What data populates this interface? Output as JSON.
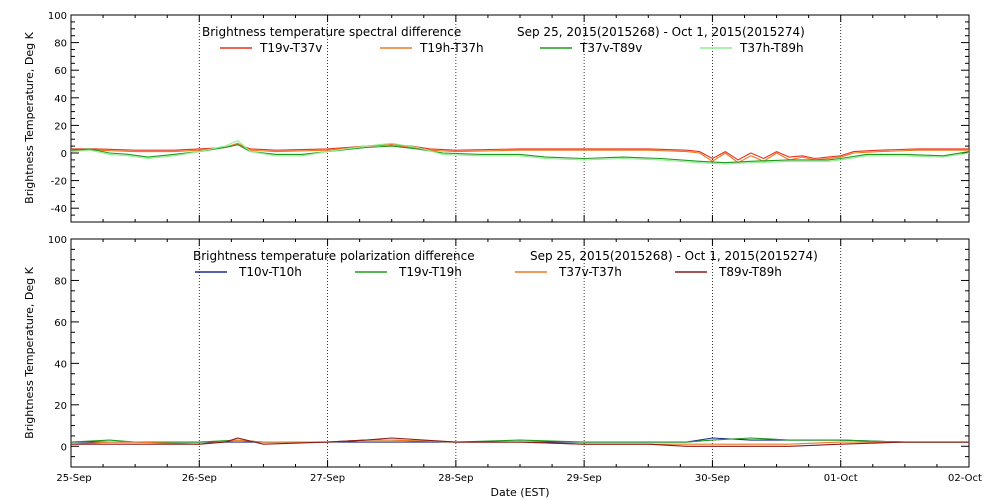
{
  "xlabel": "Date (EST)",
  "x_ticks": [
    "25-Sep",
    "26-Sep",
    "27-Sep",
    "28-Sep",
    "29-Sep",
    "30-Sep",
    "01-Oct",
    "02-Oct"
  ],
  "chart_data": [
    {
      "type": "line",
      "title_left": "Brightness temperature spectral difference",
      "title_right": "Sep 25, 2015(2015268) - Oct  1, 2015(2015274)",
      "ylabel": "Brightness Temperature, Deg K",
      "ylim": [
        -50,
        100
      ],
      "yticks": [
        -40,
        -20,
        0,
        20,
        40,
        60,
        80,
        100
      ],
      "xlim": [
        0,
        7
      ],
      "series": [
        {
          "name": "T19v-T37v",
          "color": "#e8321e",
          "x": [
            0,
            0.2,
            0.5,
            0.8,
            1.0,
            1.2,
            1.3,
            1.4,
            1.6,
            2.0,
            2.3,
            2.5,
            2.65,
            2.8,
            3.0,
            3.5,
            4.0,
            4.5,
            4.8,
            4.9,
            5.0,
            5.1,
            5.2,
            5.3,
            5.4,
            5.5,
            5.6,
            5.7,
            5.8,
            5.9,
            6.0,
            6.1,
            6.3,
            6.6,
            7.0
          ],
          "y": [
            3,
            3,
            2,
            2,
            3,
            4,
            6,
            3,
            2,
            3,
            5,
            6,
            5,
            3,
            2,
            3,
            3,
            3,
            2,
            1,
            -4,
            1,
            -5,
            0,
            -4,
            1,
            -3,
            -2,
            -4,
            -3,
            -2,
            1,
            2,
            3,
            3
          ]
        },
        {
          "name": "T19h-T37h",
          "color": "#f07820",
          "x": [
            0,
            0.2,
            0.5,
            0.8,
            1.0,
            1.2,
            1.3,
            1.4,
            1.6,
            2.0,
            2.3,
            2.5,
            2.65,
            2.8,
            3.0,
            3.5,
            4.0,
            4.5,
            4.8,
            4.9,
            5.0,
            5.1,
            5.2,
            5.3,
            5.4,
            5.5,
            5.6,
            5.7,
            5.8,
            5.9,
            6.0,
            6.1,
            6.3,
            6.6,
            7.0
          ],
          "y": [
            2,
            2,
            1,
            1,
            2,
            4,
            7,
            2,
            1,
            2,
            5,
            6,
            4,
            2,
            1,
            2,
            2,
            2,
            1,
            0,
            -6,
            0,
            -7,
            -2,
            -6,
            0,
            -5,
            -3,
            -5,
            -4,
            -3,
            0,
            1,
            2,
            2
          ]
        },
        {
          "name": "T37v-T89v",
          "color": "#1e9a1e",
          "x": [
            0,
            0.15,
            0.3,
            0.45,
            0.6,
            0.8,
            1.0,
            1.2,
            1.3,
            1.4,
            1.6,
            1.8,
            2.0,
            2.3,
            2.5,
            2.7,
            2.9,
            3.2,
            3.5,
            3.7,
            4.0,
            4.3,
            4.6,
            4.9,
            5.1,
            5.3,
            5.6,
            5.9,
            6.0,
            6.2,
            6.5,
            6.8,
            7.0
          ],
          "y": [
            2,
            3,
            0,
            -1,
            -3,
            -1,
            1,
            4,
            6,
            1,
            -1,
            -1,
            1,
            4,
            5,
            3,
            0,
            -1,
            -1,
            -3,
            -4,
            -3,
            -4,
            -6,
            -7,
            -6,
            -5,
            -5,
            -4,
            -1,
            -1,
            -2,
            1
          ]
        },
        {
          "name": "T37h-T89h",
          "color": "#90ee90",
          "x": [
            0,
            0.15,
            0.3,
            0.45,
            0.6,
            0.8,
            1.0,
            1.2,
            1.3,
            1.4,
            1.6,
            1.8,
            2.0,
            2.3,
            2.5,
            2.7,
            2.9,
            3.2,
            3.5,
            3.7,
            4.0,
            4.3,
            4.6,
            4.9,
            5.1,
            5.3,
            5.6,
            5.9,
            6.0,
            6.2,
            6.5,
            6.8,
            7.0
          ],
          "y": [
            1,
            2,
            -1,
            -2,
            -4,
            -2,
            1,
            5,
            9,
            1,
            -2,
            -2,
            1,
            5,
            7,
            4,
            -1,
            -2,
            -2,
            -4,
            -5,
            -4,
            -5,
            -7,
            -8,
            -7,
            -6,
            -6,
            -5,
            -2,
            -2,
            -3,
            0
          ]
        }
      ]
    },
    {
      "type": "line",
      "title_left": "Brightness temperature polarization difference",
      "title_right": "Sep 25, 2015(2015268) - Oct  1, 2015(2015274)",
      "ylabel": "Brightness Temperature, Deg K",
      "ylim": [
        -10,
        100
      ],
      "yticks": [
        0,
        20,
        40,
        60,
        80,
        100
      ],
      "xlim": [
        0,
        7
      ],
      "series": [
        {
          "name": "T10v-T10h",
          "color": "#1e2a8c",
          "x": [
            0,
            0.5,
            1.0,
            1.3,
            1.5,
            2.0,
            2.3,
            2.5,
            3.0,
            3.5,
            4.0,
            4.5,
            4.8,
            5.0,
            5.3,
            5.6,
            6.0,
            6.5,
            7.0
          ],
          "y": [
            2,
            2,
            2,
            2,
            2,
            2,
            2,
            2,
            2,
            2,
            2,
            2,
            2,
            4,
            3,
            3,
            3,
            2,
            2
          ]
        },
        {
          "name": "T19v-T19h",
          "color": "#1e9a1e",
          "x": [
            0,
            0.3,
            0.5,
            1.0,
            1.3,
            1.5,
            2.0,
            2.3,
            2.5,
            3.0,
            3.5,
            4.0,
            4.5,
            4.8,
            5.0,
            5.3,
            5.6,
            6.0,
            6.5,
            7.0
          ],
          "y": [
            2,
            3,
            2,
            2,
            3,
            2,
            2,
            3,
            3,
            2,
            3,
            2,
            2,
            2,
            3,
            4,
            3,
            3,
            2,
            2
          ]
        },
        {
          "name": "T37v-T37h",
          "color": "#f07820",
          "x": [
            0,
            0.3,
            0.5,
            1.0,
            1.3,
            1.5,
            2.0,
            2.3,
            2.5,
            3.0,
            3.5,
            4.0,
            4.5,
            4.8,
            5.0,
            5.3,
            5.6,
            6.0,
            6.5,
            7.0
          ],
          "y": [
            1,
            2,
            2,
            1,
            3,
            2,
            2,
            3,
            3,
            2,
            2,
            1,
            1,
            1,
            1,
            1,
            1,
            2,
            2,
            2
          ]
        },
        {
          "name": "T89v-T89h",
          "color": "#8b1a1a",
          "x": [
            0,
            0.3,
            0.5,
            1.0,
            1.2,
            1.3,
            1.5,
            2.0,
            2.3,
            2.5,
            3.0,
            3.5,
            4.0,
            4.5,
            4.8,
            5.0,
            5.3,
            5.6,
            6.0,
            6.5,
            7.0
          ],
          "y": [
            1,
            1,
            1,
            1,
            2,
            4,
            1,
            2,
            3,
            4,
            2,
            2,
            1,
            1,
            0,
            0,
            0,
            0,
            1,
            2,
            2
          ]
        }
      ]
    }
  ]
}
